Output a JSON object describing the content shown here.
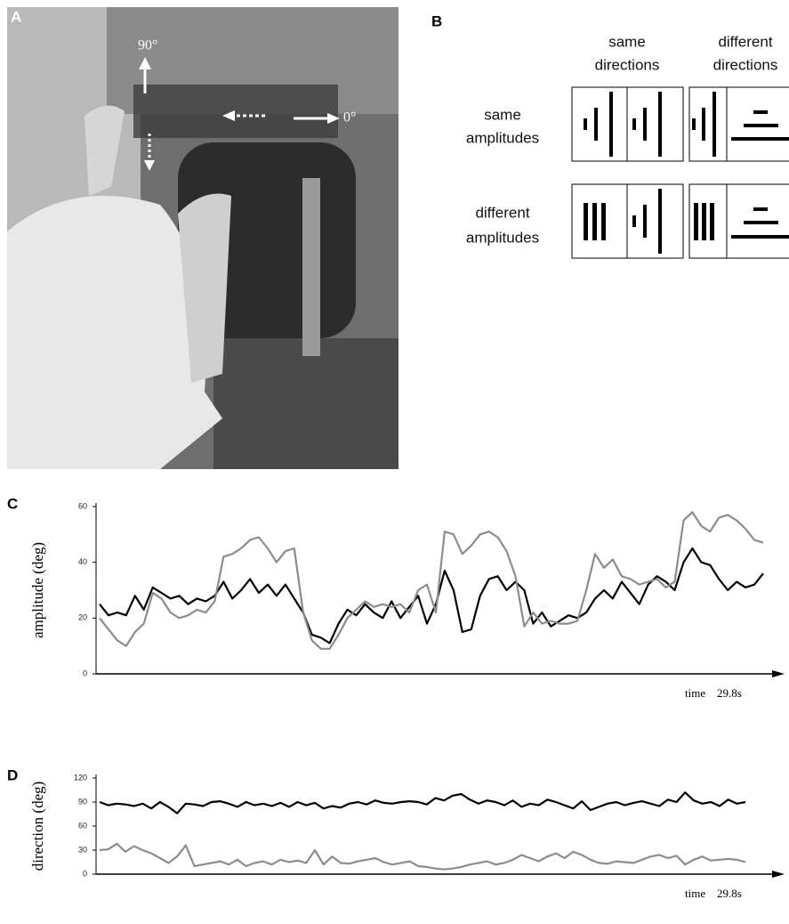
{
  "panels": {
    "a": {
      "label": "A",
      "arrow_labels": [
        "90°",
        "0°"
      ]
    },
    "b": {
      "label": "B",
      "columns": [
        [
          "same",
          "directions"
        ],
        [
          "different",
          "directions"
        ]
      ],
      "rows": [
        [
          "same",
          "amplitudes"
        ],
        [
          "different",
          "amplitudes"
        ]
      ]
    }
  },
  "chart_data": [
    {
      "type": "line",
      "panel": "C",
      "ylabel": "amplitude (deg)",
      "xlabel": "time",
      "x_end_label": "29.8s",
      "ylim": [
        0,
        60
      ],
      "yticks": [
        0,
        20,
        40,
        60
      ],
      "series": [
        {
          "color": "#000000",
          "values": [
            25,
            21,
            22,
            21,
            28,
            23,
            31,
            29,
            27,
            28,
            25,
            27,
            26,
            28,
            33,
            27,
            30,
            34,
            29,
            32,
            28,
            32,
            27,
            22,
            14,
            13,
            11,
            18,
            23,
            21,
            25,
            22,
            20,
            26,
            20,
            24,
            28,
            18,
            25,
            37,
            30,
            15,
            16,
            28,
            34,
            35,
            30,
            33,
            30,
            18,
            22,
            17,
            19,
            21,
            20,
            22,
            27,
            30,
            27,
            33,
            29,
            25,
            32,
            35,
            33,
            30,
            40,
            45,
            40,
            39,
            34,
            30,
            33,
            31,
            32,
            36
          ]
        },
        {
          "color": "#8c8c8c",
          "values": [
            20,
            16,
            12,
            10,
            15,
            18,
            29,
            27,
            22,
            20,
            21,
            23,
            22,
            26,
            42,
            43,
            45,
            48,
            49,
            45,
            40,
            44,
            45,
            22,
            12,
            9,
            9,
            14,
            20,
            23,
            26,
            24,
            25,
            24,
            25,
            22,
            30,
            32,
            22,
            51,
            50,
            43,
            46,
            50,
            51,
            49,
            44,
            35,
            17,
            22,
            18,
            19,
            18,
            18,
            19,
            30,
            43,
            38,
            41,
            35,
            34,
            32,
            33,
            34,
            31,
            33,
            55,
            58,
            53,
            51,
            56,
            57,
            55,
            52,
            48,
            47
          ]
        }
      ]
    },
    {
      "type": "line",
      "panel": "D",
      "ylabel": "direction (deg)",
      "xlabel": "time",
      "x_end_label": "29.8s",
      "ylim": [
        0,
        120
      ],
      "yticks": [
        0,
        30,
        60,
        90,
        120
      ],
      "series": [
        {
          "color": "#000000",
          "values": [
            90,
            86,
            88,
            87,
            85,
            88,
            82,
            90,
            84,
            76,
            88,
            87,
            85,
            90,
            91,
            88,
            84,
            90,
            86,
            88,
            85,
            89,
            84,
            90,
            86,
            89,
            82,
            85,
            83,
            88,
            90,
            87,
            92,
            89,
            88,
            90,
            91,
            90,
            87,
            95,
            92,
            98,
            100,
            93,
            88,
            92,
            90,
            86,
            92,
            84,
            88,
            86,
            93,
            90,
            86,
            82,
            91,
            80,
            84,
            88,
            90,
            86,
            89,
            91,
            88,
            85,
            93,
            90,
            102,
            92,
            88,
            90,
            85,
            93,
            88,
            90
          ]
        },
        {
          "color": "#8c8c8c",
          "values": [
            30,
            31,
            38,
            28,
            35,
            30,
            26,
            20,
            14,
            22,
            36,
            10,
            12,
            14,
            16,
            12,
            18,
            10,
            14,
            16,
            12,
            18,
            15,
            17,
            14,
            30,
            12,
            22,
            14,
            13,
            16,
            18,
            20,
            15,
            12,
            14,
            16,
            10,
            9,
            7,
            6,
            7,
            9,
            12,
            14,
            16,
            12,
            14,
            18,
            24,
            20,
            16,
            22,
            26,
            20,
            28,
            24,
            18,
            14,
            13,
            16,
            15,
            14,
            18,
            22,
            24,
            20,
            23,
            12,
            18,
            22,
            17,
            18,
            19,
            18,
            15
          ]
        }
      ]
    }
  ]
}
